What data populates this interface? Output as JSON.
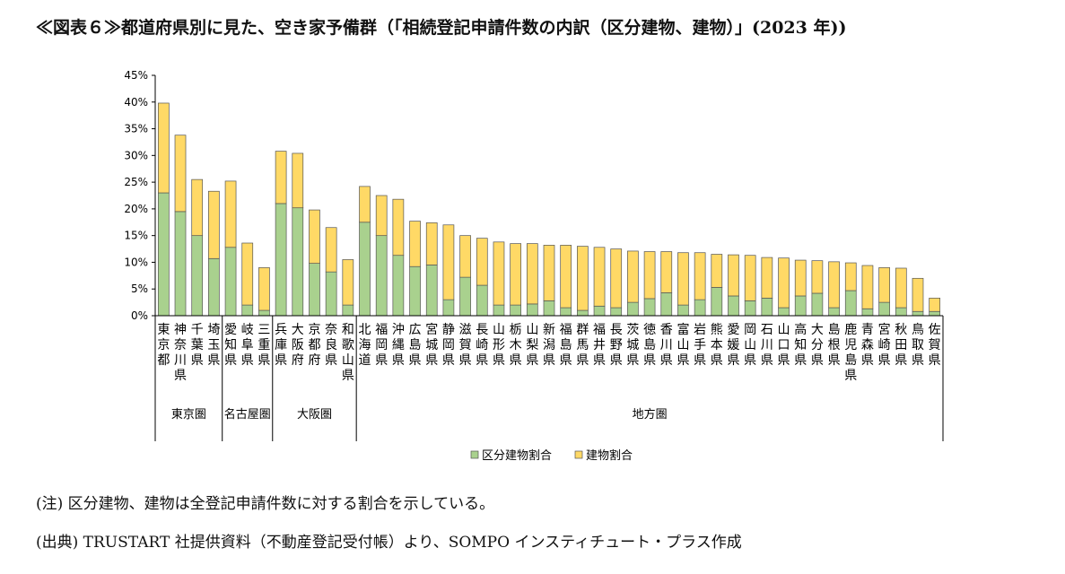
{
  "title": "≪図表６≫都道府県別に見た、空き家予備群（「相続登記申請件数の内訳（区分建物、建物）」(2023 年))",
  "notes": [
    "(注) 区分建物、建物は全登記申請件数に対する割合を示している。",
    "(出典) TRUSTART 社提供資料（不動産登記受付帳）より、SOMPO インスティチュート・プラス作成"
  ],
  "colors": {
    "kubun": "#a9d18e",
    "tatemono": "#ffd966",
    "edge": "#555555"
  },
  "chart_data": {
    "type": "bar",
    "stacked": true,
    "ylim": [
      0,
      45
    ],
    "yticks": [
      "0%",
      "5%",
      "10%",
      "15%",
      "20%",
      "25%",
      "30%",
      "35%",
      "40%",
      "45%"
    ],
    "grid": false,
    "legend_position": "bottom",
    "categories": [
      "東京都",
      "神奈川県",
      "千葉県",
      "埼玉県",
      "愛知県",
      "岐阜県",
      "三重県",
      "兵庫県",
      "大阪府",
      "京都府",
      "奈良県",
      "和歌山県",
      "北海道",
      "福岡県",
      "沖縄県",
      "広島県",
      "宮城県",
      "静岡県",
      "滋賀県",
      "長崎県",
      "山形県",
      "栃木県",
      "山梨県",
      "新潟県",
      "福島県",
      "群馬県",
      "福井県",
      "長野県",
      "茨城県",
      "徳島県",
      "香川県",
      "富山県",
      "岩手県",
      "熊本県",
      "愛媛県",
      "岡山県",
      "石川県",
      "山口県",
      "高知県",
      "大分県",
      "島根県",
      "鹿児島県",
      "青森県",
      "宮崎県",
      "秋田県",
      "鳥取県",
      "佐賀県"
    ],
    "groups": [
      {
        "label": "東京圏",
        "count": 4
      },
      {
        "label": "名古屋圏",
        "count": 3
      },
      {
        "label": "大阪圏",
        "count": 5
      },
      {
        "label": "地方圏",
        "count": 35
      }
    ],
    "series": [
      {
        "name": "区分建物割合",
        "values": [
          23.0,
          19.5,
          15.0,
          10.7,
          12.8,
          2.0,
          1.0,
          21.0,
          20.2,
          9.8,
          8.2,
          2.0,
          17.5,
          15.0,
          11.3,
          9.2,
          9.5,
          3.0,
          7.2,
          5.7,
          2.0,
          2.0,
          2.2,
          2.8,
          1.5,
          1.0,
          1.8,
          1.5,
          2.5,
          3.2,
          4.3,
          2.0,
          3.0,
          5.3,
          3.7,
          2.8,
          3.3,
          1.5,
          3.7,
          4.2,
          1.5,
          4.7,
          1.3,
          2.5,
          1.5,
          0.8,
          0.8
        ]
      },
      {
        "name": "建物割合",
        "values": [
          16.8,
          14.3,
          10.5,
          12.6,
          12.4,
          11.6,
          8.0,
          9.8,
          10.2,
          10.0,
          8.3,
          8.5,
          6.7,
          7.5,
          10.5,
          8.5,
          7.9,
          14.0,
          7.8,
          8.8,
          11.8,
          11.5,
          11.3,
          10.4,
          11.7,
          12.0,
          11.0,
          11.0,
          9.6,
          8.8,
          7.7,
          9.8,
          8.8,
          6.2,
          7.7,
          8.5,
          7.6,
          9.3,
          6.7,
          6.1,
          8.6,
          5.2,
          8.1,
          6.5,
          7.4,
          6.2,
          2.5
        ]
      }
    ]
  }
}
